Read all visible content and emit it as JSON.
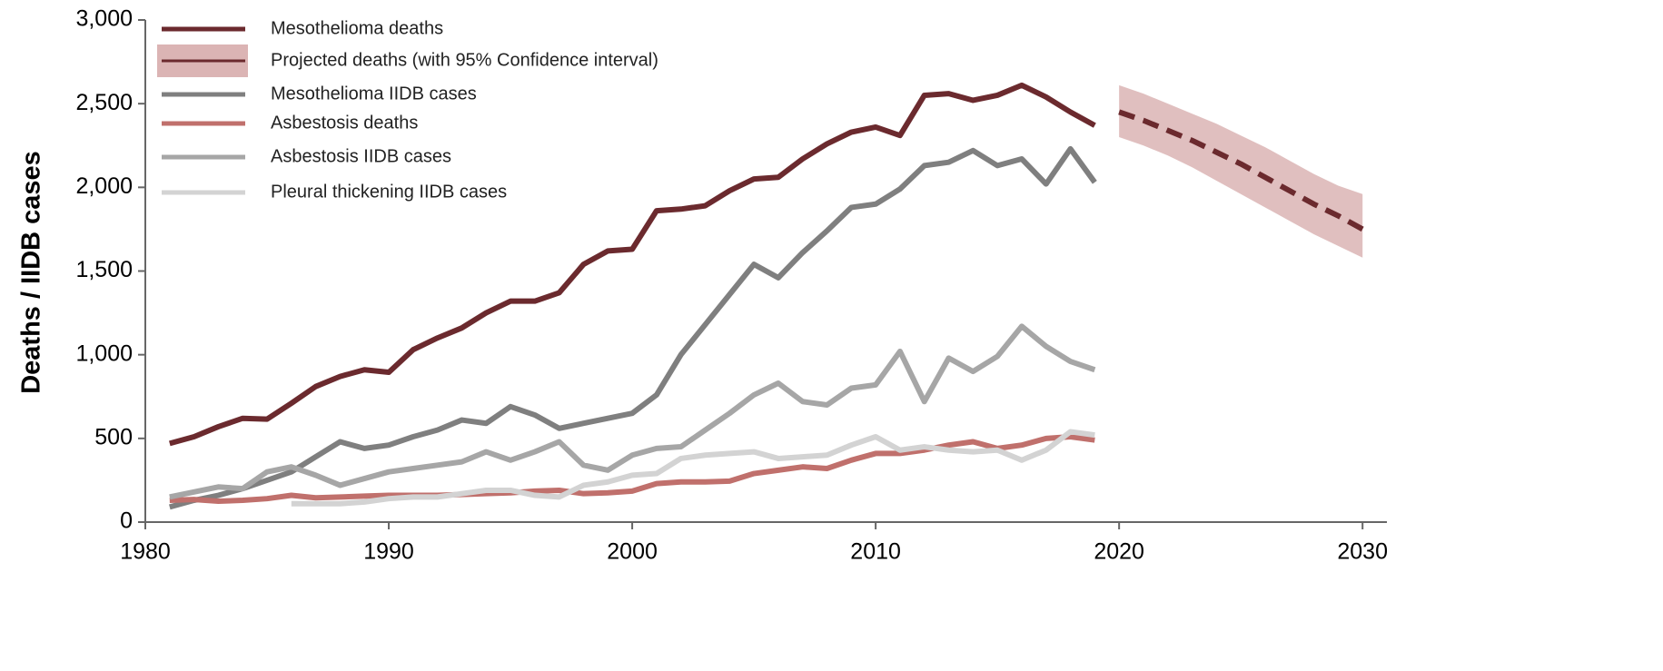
{
  "chart_data": {
    "type": "line",
    "y_label": "Deaths / IIDB cases",
    "x": [
      1981,
      1982,
      1983,
      1984,
      1985,
      1986,
      1987,
      1988,
      1989,
      1990,
      1991,
      1992,
      1993,
      1994,
      1995,
      1996,
      1997,
      1998,
      1999,
      2000,
      2001,
      2002,
      2003,
      2004,
      2005,
      2006,
      2007,
      2008,
      2009,
      2010,
      2011,
      2012,
      2013,
      2014,
      2015,
      2016,
      2017,
      2018,
      2019
    ],
    "xlim": [
      1980,
      2031
    ],
    "xticks": [
      1980,
      1990,
      2000,
      2010,
      2020,
      2030
    ],
    "ylim": [
      0,
      3000
    ],
    "yticks": [
      0,
      500,
      {
        "value": 1000,
        "label": "1,000"
      },
      {
        "value": 1500,
        "label": "1,500"
      },
      {
        "value": 2000,
        "label": "2,000"
      },
      {
        "value": 2500,
        "label": "2,500"
      },
      {
        "value": 3000,
        "label": "3,000"
      }
    ],
    "series": [
      {
        "name": "Mesothelioma deaths",
        "color": "#6b2a2e",
        "values": [
          470,
          510,
          570,
          620,
          615,
          710,
          810,
          870,
          910,
          895,
          1030,
          1100,
          1160,
          1250,
          1320,
          1320,
          1370,
          1540,
          1620,
          1630,
          1860,
          1870,
          1890,
          1980,
          2050,
          2060,
          2170,
          2260,
          2330,
          2360,
          2310,
          2550,
          2560,
          2520,
          2550,
          2610,
          2540,
          2450,
          2370
        ]
      },
      {
        "name": "Projected deaths (with 95% Confidence interval)",
        "color": "#6b2a2e",
        "dashed": true,
        "band_color": "#dbb4b4",
        "x": [
          2020,
          2021,
          2022,
          2023,
          2024,
          2025,
          2026,
          2027,
          2028,
          2029,
          2030
        ],
        "values": [
          2450,
          2400,
          2340,
          2280,
          2210,
          2140,
          2060,
          1980,
          1900,
          1830,
          1750
        ],
        "ci_lower": [
          2300,
          2250,
          2190,
          2120,
          2040,
          1960,
          1880,
          1800,
          1720,
          1650,
          1580
        ],
        "ci_upper": [
          2610,
          2560,
          2500,
          2440,
          2380,
          2310,
          2240,
          2160,
          2080,
          2010,
          1960
        ]
      },
      {
        "name": "Mesothelioma IIDB cases",
        "color": "#7f7f7f",
        "values": [
          90,
          130,
          160,
          200,
          250,
          300,
          390,
          480,
          440,
          460,
          510,
          550,
          610,
          590,
          690,
          640,
          560,
          590,
          620,
          650,
          760,
          1000,
          1180,
          1360,
          1540,
          1460,
          1610,
          1740,
          1880,
          1900,
          1990,
          2130,
          2150,
          2220,
          2130,
          2170,
          2020,
          2230,
          2030
        ]
      },
      {
        "name": "Asbestosis deaths",
        "color": "#c0706c",
        "values": [
          130,
          135,
          125,
          130,
          140,
          160,
          145,
          150,
          155,
          160,
          160,
          160,
          165,
          170,
          175,
          185,
          190,
          170,
          175,
          185,
          230,
          240,
          240,
          245,
          290,
          310,
          330,
          320,
          370,
          410,
          410,
          430,
          460,
          480,
          440,
          460,
          500,
          510,
          490
        ]
      },
      {
        "name": "Asbestosis IIDB cases",
        "color": "#a6a6a6",
        "values": [
          150,
          180,
          210,
          200,
          300,
          330,
          280,
          220,
          260,
          300,
          320,
          340,
          360,
          420,
          370,
          420,
          480,
          340,
          310,
          400,
          440,
          450,
          550,
          650,
          760,
          830,
          720,
          700,
          800,
          820,
          1020,
          720,
          980,
          900,
          990,
          1170,
          1050,
          960,
          910
        ]
      },
      {
        "name": "Pleural thickening IIDB cases",
        "color": "#d3d3d3",
        "values": [
          null,
          null,
          null,
          null,
          null,
          110,
          110,
          110,
          120,
          140,
          150,
          150,
          170,
          190,
          190,
          160,
          150,
          220,
          240,
          280,
          290,
          380,
          400,
          410,
          420,
          380,
          390,
          400,
          460,
          510,
          430,
          450,
          430,
          420,
          430,
          370,
          430,
          540,
          520
        ]
      }
    ]
  }
}
